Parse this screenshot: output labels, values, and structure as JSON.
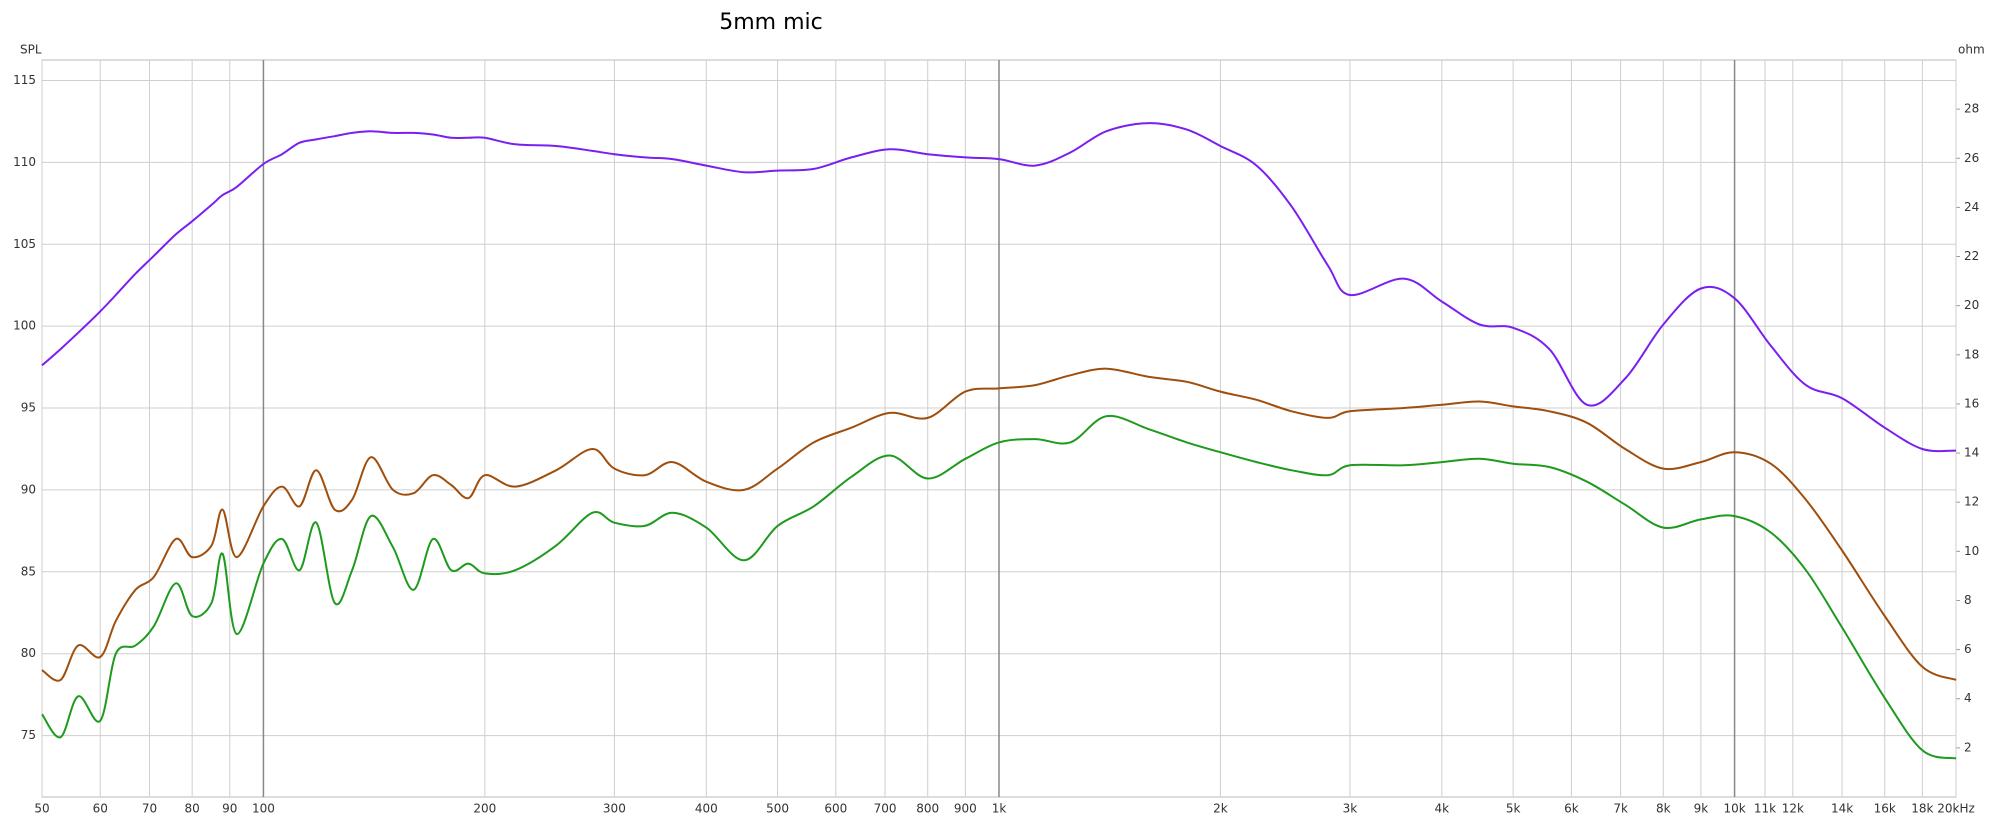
{
  "chart_data": {
    "type": "line",
    "title": "5mm mic",
    "y_label": "SPL",
    "y2_label": "ohm",
    "x_scale": "log",
    "grid": true,
    "xlim": [
      50,
      20000
    ],
    "ylim": [
      71.25,
      116.25
    ],
    "y2lim": [
      0,
      30
    ],
    "xticks": [
      50,
      60,
      70,
      80,
      90,
      100,
      200,
      300,
      400,
      500,
      600,
      700,
      800,
      900,
      {
        "value": 1000,
        "label": "1k"
      },
      {
        "value": 2000,
        "label": "2k"
      },
      {
        "value": 3000,
        "label": "3k"
      },
      {
        "value": 4000,
        "label": "4k"
      },
      {
        "value": 5000,
        "label": "5k"
      },
      {
        "value": 6000,
        "label": "6k"
      },
      {
        "value": 7000,
        "label": "7k"
      },
      {
        "value": 8000,
        "label": "8k"
      },
      {
        "value": 9000,
        "label": "9k"
      },
      {
        "value": 10000,
        "label": "10k"
      },
      {
        "value": 11000,
        "label": "11k"
      },
      {
        "value": 12000,
        "label": "12k"
      },
      {
        "value": 14000,
        "label": "14k"
      },
      {
        "value": 16000,
        "label": "16k"
      },
      {
        "value": 18000,
        "label": "18k"
      },
      {
        "value": 20000,
        "label": "20kHz"
      }
    ],
    "yticks": [
      75,
      80,
      85,
      90,
      95,
      100,
      105,
      110,
      115
    ],
    "y2ticks": [
      2,
      4,
      6,
      8,
      10,
      12,
      14,
      16,
      18,
      20,
      22,
      24,
      26,
      28
    ],
    "x": [
      50,
      53,
      56,
      60,
      63,
      67,
      71,
      76,
      80,
      85,
      88,
      92,
      100,
      106,
      112,
      118,
      125,
      132,
      140,
      150,
      160,
      170,
      180,
      190,
      200,
      220,
      250,
      280,
      300,
      330,
      360,
      400,
      450,
      500,
      560,
      630,
      710,
      800,
      900,
      1000,
      1120,
      1250,
      1400,
      1600,
      1800,
      2000,
      2240,
      2500,
      2800,
      3000,
      3550,
      4000,
      4500,
      5000,
      5600,
      6300,
      7100,
      8000,
      9000,
      10000,
      11200,
      12500,
      14000,
      16000,
      18000,
      20000
    ],
    "series": [
      {
        "color": "#7a1ff0",
        "values": [
          97.6,
          98.6,
          99.6,
          100.9,
          101.9,
          103.2,
          104.3,
          105.6,
          106.4,
          107.4,
          108.0,
          108.5,
          109.9,
          110.5,
          111.2,
          111.4,
          111.6,
          111.8,
          111.9,
          111.8,
          111.8,
          111.7,
          111.5,
          111.5,
          111.5,
          111.1,
          111.0,
          110.7,
          110.5,
          110.3,
          110.2,
          109.8,
          109.4,
          109.5,
          109.6,
          110.3,
          110.8,
          110.5,
          110.3,
          110.2,
          109.8,
          110.6,
          111.9,
          112.4,
          112.0,
          111.0,
          109.8,
          107.3,
          103.7,
          101.9,
          102.9,
          101.5,
          100.1,
          99.9,
          98.6,
          95.2,
          96.8,
          100.1,
          102.3,
          101.7,
          98.8,
          96.4,
          95.6,
          93.8,
          92.5,
          92.4
        ]
      },
      {
        "color": "#a04e0c",
        "values": [
          79.0,
          78.4,
          80.5,
          79.8,
          82.0,
          83.9,
          84.7,
          87.0,
          85.9,
          86.6,
          88.8,
          85.9,
          89.0,
          90.2,
          89.0,
          91.2,
          88.8,
          89.4,
          92.0,
          90.0,
          89.8,
          90.9,
          90.3,
          89.5,
          90.9,
          90.2,
          91.2,
          92.5,
          91.3,
          90.9,
          91.7,
          90.5,
          90.0,
          91.3,
          92.9,
          93.8,
          94.7,
          94.4,
          96.0,
          96.2,
          96.4,
          97.0,
          97.4,
          96.9,
          96.6,
          96.0,
          95.5,
          94.8,
          94.4,
          94.8,
          95.0,
          95.2,
          95.4,
          95.1,
          94.8,
          94.1,
          92.5,
          91.3,
          91.7,
          92.3,
          91.6,
          89.4,
          86.3,
          82.3,
          79.2,
          78.4
        ]
      },
      {
        "color": "#1e9a1e",
        "values": [
          76.3,
          74.9,
          77.4,
          75.9,
          80.0,
          80.5,
          81.7,
          84.3,
          82.3,
          83.1,
          86.1,
          81.2,
          85.5,
          87.0,
          85.1,
          88.0,
          83.1,
          85.1,
          88.4,
          86.5,
          83.9,
          87.0,
          85.1,
          85.5,
          84.9,
          85.1,
          86.6,
          88.6,
          88.0,
          87.8,
          88.6,
          87.7,
          85.7,
          87.8,
          89.0,
          90.8,
          92.1,
          90.7,
          91.9,
          92.9,
          93.1,
          92.9,
          94.5,
          93.7,
          92.9,
          92.3,
          91.7,
          91.2,
          90.9,
          91.5,
          91.5,
          91.7,
          91.9,
          91.6,
          91.4,
          90.5,
          89.1,
          87.7,
          88.2,
          88.4,
          87.4,
          85.1,
          81.6,
          77.3,
          74.1,
          73.6
        ]
      }
    ]
  }
}
